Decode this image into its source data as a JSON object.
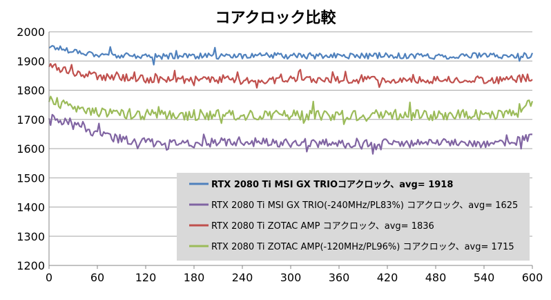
{
  "chart_data": {
    "type": "line",
    "title": "コアクロック比較",
    "xlabel": "",
    "ylabel": "",
    "xlim": [
      0,
      600
    ],
    "ylim": [
      1200,
      2000
    ],
    "x_ticks": [
      "0",
      "60",
      "120",
      "180",
      "240",
      "300",
      "360",
      "420",
      "480",
      "540",
      "600"
    ],
    "y_ticks": [
      "1200",
      "1300",
      "1400",
      "1500",
      "1600",
      "1700",
      "1800",
      "1900",
      "2000"
    ],
    "grid": "horizontal",
    "legend_position": "bottom-right",
    "series": [
      {
        "name": "RTX 2080 Ti MSI GX TRIOコアクロック、avg= 1918",
        "color": "#4f81bd",
        "bold_legend": true,
        "x": [
          0,
          30,
          60,
          90,
          120,
          150,
          180,
          210,
          240,
          270,
          300,
          330,
          360,
          390,
          420,
          450,
          480,
          510,
          540,
          570,
          600
        ],
        "values": [
          1950,
          1935,
          1922,
          1918,
          1915,
          1917,
          1918,
          1916,
          1918,
          1919,
          1917,
          1916,
          1918,
          1917,
          1919,
          1918,
          1916,
          1917,
          1918,
          1917,
          1920
        ]
      },
      {
        "name": "RTX 2080 Ti MSI GX TRIO(-240MHz/PL83%) コアクロック、avg= 1625",
        "color": "#8064a2",
        "bold_legend": false,
        "x": [
          0,
          30,
          60,
          90,
          120,
          150,
          180,
          210,
          240,
          270,
          300,
          330,
          360,
          390,
          420,
          450,
          480,
          510,
          540,
          570,
          600
        ],
        "values": [
          1710,
          1680,
          1650,
          1632,
          1622,
          1620,
          1618,
          1622,
          1625,
          1620,
          1618,
          1620,
          1615,
          1622,
          1620,
          1618,
          1620,
          1622,
          1618,
          1620,
          1640
        ]
      },
      {
        "name": "RTX 2080 Ti ZOTAC AMP コアクロック、avg= 1836",
        "color": "#c0504d",
        "bold_legend": false,
        "x": [
          0,
          30,
          60,
          90,
          120,
          150,
          180,
          210,
          240,
          270,
          300,
          330,
          360,
          390,
          420,
          450,
          480,
          510,
          540,
          570,
          600
        ],
        "values": [
          1885,
          1862,
          1848,
          1842,
          1838,
          1837,
          1836,
          1835,
          1837,
          1834,
          1836,
          1835,
          1836,
          1835,
          1836,
          1834,
          1836,
          1835,
          1836,
          1835,
          1845
        ]
      },
      {
        "name": "RTX 2080 Ti ZOTAC AMP(-120MHz/PL96%) コアクロック、avg= 1715",
        "color": "#9bbb59",
        "bold_legend": false,
        "x": [
          0,
          30,
          60,
          90,
          120,
          150,
          180,
          210,
          240,
          270,
          300,
          330,
          360,
          390,
          420,
          450,
          480,
          510,
          540,
          570,
          600
        ],
        "values": [
          1765,
          1740,
          1728,
          1720,
          1716,
          1714,
          1715,
          1716,
          1714,
          1715,
          1716,
          1713,
          1715,
          1714,
          1716,
          1715,
          1714,
          1716,
          1715,
          1714,
          1760
        ]
      }
    ]
  }
}
